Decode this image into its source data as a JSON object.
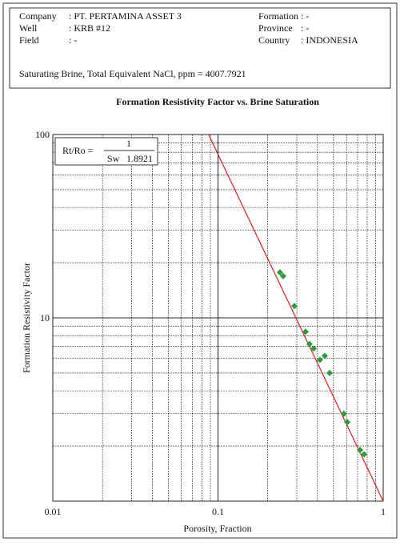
{
  "header": {
    "company_label": "Company",
    "company": ": PT. PERTAMINA ASSET 3",
    "formation_label": "Formation",
    "formation": ": -",
    "well_label": "Well",
    "well": ": KRB #12",
    "province_label": "Province",
    "province": ": -",
    "field_label": "Field",
    "field": ": -",
    "country_label": "Country",
    "country": ": INDONESIA",
    "brine": "Saturating Brine, Total Equivalent NaCl, ppm = 4007.7921"
  },
  "chart_data": {
    "type": "scatter",
    "title": "Formation Resistivity Factor vs. Brine Saturation",
    "x_label": "Porosity, Fraction",
    "y_label": "Formation Resistivity Factor",
    "equation": {
      "lhs": "Rt/Ro =",
      "numerator": "1",
      "base": "Sw",
      "exponent": "1.8921"
    },
    "log_x": true,
    "log_y": true,
    "grid": true,
    "xlim": [
      0.01,
      1
    ],
    "ylim": [
      1,
      100
    ],
    "xticks": [
      0.01,
      0.1,
      1
    ],
    "yticks": [
      10,
      100
    ],
    "xminor": [
      0.02,
      0.03,
      0.04,
      0.05,
      0.06,
      0.07,
      0.08,
      0.09,
      0.2,
      0.3,
      0.4,
      0.5,
      0.6,
      0.7,
      0.8,
      0.9
    ],
    "yminor": [
      2,
      3,
      4,
      5,
      6,
      7,
      8,
      9,
      20,
      30,
      40,
      50,
      60,
      70,
      80,
      90
    ],
    "color": "#2e9a3a",
    "x": [
      0.237,
      0.248,
      0.29,
      0.339,
      0.358,
      0.379,
      0.414,
      0.443,
      0.474,
      0.579,
      0.606,
      0.724,
      0.766
    ],
    "values": [
      17.7,
      16.9,
      11.6,
      8.4,
      7.2,
      6.8,
      5.9,
      6.2,
      5.0,
      3.0,
      2.7,
      1.9,
      1.8
    ],
    "fit_line": {
      "x": [
        0.0877,
        1
      ],
      "y": [
        100,
        1
      ],
      "color": "#e02020"
    }
  }
}
